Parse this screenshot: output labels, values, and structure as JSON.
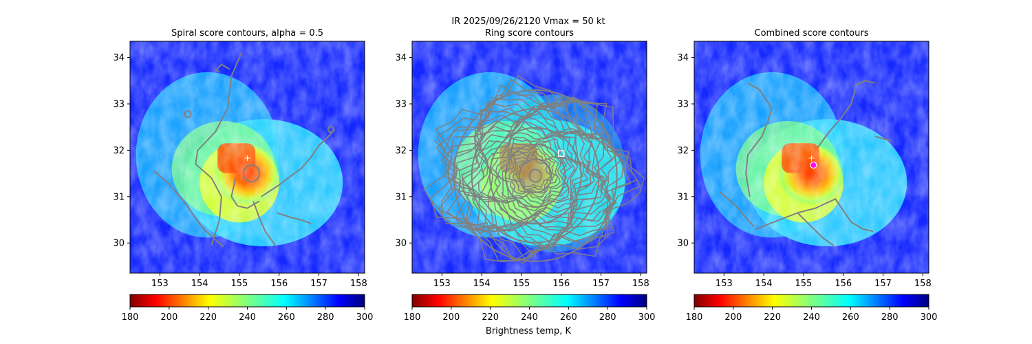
{
  "figure": {
    "suptitle_line1": "IR  2025/09/26/2120    Vmax = 50 kt",
    "colorbar_label": "Brightness temp, K"
  },
  "chart_data": [
    {
      "type": "heatmap",
      "title": "Spiral score contours, alpha =  0.5",
      "xlim": [
        152.25,
        158.15
      ],
      "ylim": [
        29.35,
        34.35
      ],
      "xticks": [
        "153",
        "154",
        "155",
        "156",
        "157",
        "158"
      ],
      "yticks": [
        "30",
        "31",
        "32",
        "33",
        "34"
      ],
      "colorbar": {
        "min": 180,
        "max": 300,
        "ticks": [
          "180",
          "200",
          "220",
          "240",
          "260",
          "280",
          "300"
        ],
        "colormap": "jet_r"
      },
      "center_marker": {
        "x": 155.2,
        "y": 31.83,
        "symbol": "+",
        "color": "#ffffff"
      },
      "contour_color": "#808080",
      "contours": [
        [
          [
            154.3,
            29.95
          ],
          [
            154.5,
            30.5
          ],
          [
            154.55,
            31.0
          ],
          [
            154.3,
            31.4
          ],
          [
            153.9,
            31.7
          ],
          [
            153.95,
            32.0
          ],
          [
            154.4,
            32.4
          ],
          [
            154.7,
            32.9
          ],
          [
            154.8,
            33.6
          ],
          [
            155.05,
            34.1
          ]
        ],
        [
          [
            152.85,
            31.55
          ],
          [
            153.2,
            31.3
          ],
          [
            153.6,
            30.9
          ],
          [
            154.1,
            30.3
          ],
          [
            154.6,
            29.92
          ]
        ],
        [
          [
            155.35,
            30.9
          ],
          [
            155.5,
            30.55
          ],
          [
            155.65,
            30.25
          ],
          [
            155.9,
            29.95
          ]
        ],
        [
          [
            154.9,
            31.4
          ],
          [
            154.8,
            31.0
          ],
          [
            154.95,
            30.8
          ],
          [
            155.2,
            30.75
          ],
          [
            155.5,
            30.9
          ]
        ],
        [
          [
            155.55,
            31.0
          ],
          [
            156.0,
            31.25
          ],
          [
            156.3,
            31.45
          ],
          [
            156.55,
            31.6
          ],
          [
            156.8,
            31.85
          ],
          [
            157.0,
            32.1
          ],
          [
            157.3,
            32.35
          ],
          [
            157.4,
            32.45
          ]
        ],
        [
          [
            155.95,
            30.65
          ],
          [
            156.3,
            30.55
          ],
          [
            156.55,
            30.5
          ],
          [
            156.8,
            30.42
          ]
        ],
        [
          [
            154.5,
            33.7
          ],
          [
            154.4,
            33.72
          ],
          [
            154.55,
            33.85
          ],
          [
            154.75,
            33.75
          ]
        ]
      ],
      "rings": [
        {
          "x": 155.3,
          "y": 31.5,
          "r": 0.2,
          "color": "#808080"
        },
        {
          "x": 153.7,
          "y": 32.78,
          "r": 0.08,
          "color": "#808080"
        },
        {
          "x": 157.3,
          "y": 32.45,
          "r": 0.07,
          "color": "#808080"
        }
      ]
    },
    {
      "type": "heatmap",
      "title": "Ring score contours",
      "xlim": [
        152.25,
        158.15
      ],
      "ylim": [
        29.35,
        34.35
      ],
      "xticks": [
        "153",
        "154",
        "155",
        "156",
        "157",
        "158"
      ],
      "yticks": [
        "30",
        "31",
        "32",
        "33",
        "34"
      ],
      "colorbar": {
        "min": 180,
        "max": 300,
        "ticks": [
          "180",
          "200",
          "220",
          "240",
          "260",
          "280",
          "300"
        ],
        "colormap": "jet_r"
      },
      "center_marker": {
        "x": 156.0,
        "y": 31.93,
        "symbol": "square",
        "color": "#ffffff"
      },
      "contour_color": "#808080",
      "contour_region": {
        "x": 155.3,
        "y": 31.5,
        "rx": 2.6,
        "ry": 2.2
      },
      "rings": [
        {
          "x": 155.35,
          "y": 31.45,
          "r": 0.15,
          "color": "#808080"
        },
        {
          "x": 155.35,
          "y": 31.45,
          "r": 0.4,
          "color": "#808080"
        },
        {
          "x": 155.35,
          "y": 31.45,
          "r": 0.75,
          "color": "#808080"
        },
        {
          "x": 155.35,
          "y": 31.45,
          "r": 1.15,
          "color": "#808080"
        },
        {
          "x": 155.35,
          "y": 31.45,
          "r": 1.6,
          "color": "#808080"
        },
        {
          "x": 155.35,
          "y": 31.45,
          "r": 2.05,
          "color": "#808080"
        }
      ]
    },
    {
      "type": "heatmap",
      "title": "Combined score contours",
      "xlim": [
        152.25,
        158.15
      ],
      "ylim": [
        29.35,
        34.35
      ],
      "xticks": [
        "153",
        "154",
        "155",
        "156",
        "157",
        "158"
      ],
      "yticks": [
        "30",
        "31",
        "32",
        "33",
        "34"
      ],
      "colorbar": {
        "min": 180,
        "max": 300,
        "ticks": [
          "180",
          "200",
          "220",
          "240",
          "260",
          "280",
          "300"
        ],
        "colormap": "jet_r"
      },
      "center_marker": {
        "x": 155.2,
        "y": 31.83,
        "symbol": "+",
        "color": "#ffffff"
      },
      "combined_marker": {
        "x": 155.25,
        "y": 31.68,
        "symbol": "circle",
        "color": "#ff00ff"
      },
      "contour_color": "#808080",
      "contours": [
        [
          [
            153.75,
            30.35
          ],
          [
            153.3,
            30.8
          ],
          [
            152.9,
            31.1
          ]
        ],
        [
          [
            153.65,
            31.0
          ],
          [
            153.55,
            31.5
          ],
          [
            153.6,
            31.9
          ],
          [
            153.95,
            32.3
          ],
          [
            154.1,
            32.6
          ],
          [
            154.2,
            32.9
          ],
          [
            153.9,
            33.3
          ],
          [
            153.6,
            33.45
          ]
        ],
        [
          [
            153.8,
            30.3
          ],
          [
            154.1,
            30.4
          ],
          [
            154.55,
            30.55
          ],
          [
            154.85,
            30.65
          ],
          [
            155.2,
            30.35
          ],
          [
            155.5,
            30.1
          ],
          [
            155.75,
            29.95
          ]
        ],
        [
          [
            154.85,
            30.65
          ],
          [
            155.3,
            30.75
          ],
          [
            155.8,
            30.95
          ],
          [
            156.2,
            30.45
          ],
          [
            156.5,
            30.3
          ],
          [
            156.75,
            30.25
          ]
        ],
        [
          [
            155.35,
            32.05
          ],
          [
            155.6,
            32.35
          ],
          [
            155.95,
            32.7
          ],
          [
            156.2,
            33.0
          ],
          [
            156.3,
            33.3
          ]
        ],
        [
          [
            156.3,
            33.4
          ],
          [
            156.55,
            33.5
          ],
          [
            156.8,
            33.45
          ]
        ],
        [
          [
            156.8,
            32.3
          ],
          [
            157.0,
            32.25
          ],
          [
            157.2,
            32.2
          ]
        ]
      ]
    }
  ]
}
